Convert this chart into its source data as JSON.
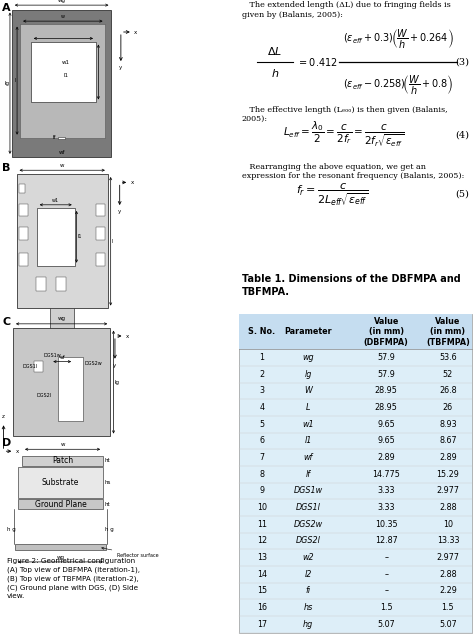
{
  "title_table": "Table 1. Dimensions of the DBFMPA and\nTBFMPA.",
  "table_bg": "#ddeef8",
  "header_bg": "#c5ddf0",
  "col_headers": [
    "S. No.",
    "Parameter",
    "Value\n(in mm)\n(DBFMPA)",
    "Value\n(in mm)\n(TBFMPA)"
  ],
  "rows": [
    [
      "1",
      "wg",
      "57.9",
      "53.6"
    ],
    [
      "2",
      "lg",
      "57.9",
      "52"
    ],
    [
      "3",
      "W",
      "28.95",
      "26.8"
    ],
    [
      "4",
      "L",
      "28.95",
      "26"
    ],
    [
      "5",
      "w1",
      "9.65",
      "8.93"
    ],
    [
      "6",
      "l1",
      "9.65",
      "8.67"
    ],
    [
      "7",
      "wf",
      "2.89",
      "2.89"
    ],
    [
      "8",
      "lf",
      "14.775",
      "15.29"
    ],
    [
      "9",
      "DGS1w",
      "3.33",
      "2.977"
    ],
    [
      "10",
      "DGS1l",
      "3.33",
      "2.88"
    ],
    [
      "11",
      "DGS2w",
      "10.35",
      "10"
    ],
    [
      "12",
      "DGS2l",
      "12.87",
      "13.33"
    ],
    [
      "13",
      "w2",
      "–",
      "2.977"
    ],
    [
      "14",
      "l2",
      "–",
      "2.88"
    ],
    [
      "15",
      "fi",
      "–",
      "2.29"
    ],
    [
      "16",
      "hs",
      "1.5",
      "1.5"
    ],
    [
      "17",
      "hg",
      "5.07",
      "5.07"
    ]
  ],
  "fig_caption": "Figure 2: Geometrical configuration\n(A) Top view of DBFMPA (iteration-1),\n(B) Top view of TBFMPA (iteration-2),\n(C) Ground plane with DGS, (D) Side\nview.",
  "text1": "   The extended length (ΔL) due to fringing fields is\ngiven by (Balanis, 2005):",
  "text2": "   The effective length (Lₑₒₒ) is then given (Balanis,\n2005):",
  "text3": "   Rearranging the above equation, we get an\nexpression for the resonant frequency (Balanis, 2005):",
  "eq1_label": "(3)",
  "eq2_label": "(4)",
  "eq3_label": "(5)",
  "bg_color": "#ffffff",
  "panel_labels": [
    "A",
    "B",
    "C",
    "D"
  ]
}
